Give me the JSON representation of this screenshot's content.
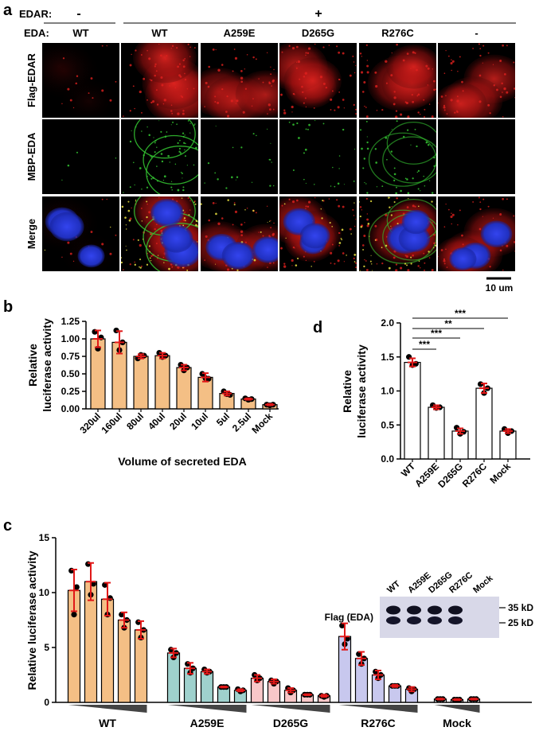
{
  "panel_a": {
    "letter": "a",
    "edar_label": "EDAR:",
    "eda_label": "EDA:",
    "edar_values": [
      "-",
      "+"
    ],
    "columns": [
      "WT",
      "WT",
      "A259E",
      "D265G",
      "R276C",
      "-"
    ],
    "rows": [
      "Flag-EDAR",
      "MBP-EDA",
      "Merge"
    ],
    "scale_bar": "10 um",
    "channel_colors": {
      "flag": "#e0201e",
      "mbp": "#35c832",
      "dapi": "#2233dd"
    }
  },
  "panel_b": {
    "letter": "b",
    "chart_data": {
      "type": "bar",
      "categories": [
        "320ul",
        "160ul",
        "80ul",
        "40ul",
        "20ul",
        "10ul",
        "5ul",
        "2.5ul",
        "Mock"
      ],
      "values": [
        1.0,
        0.95,
        0.75,
        0.76,
        0.59,
        0.45,
        0.22,
        0.14,
        0.06
      ],
      "errors": [
        0.12,
        0.16,
        0.03,
        0.04,
        0.04,
        0.06,
        0.03,
        0.01,
        0.01
      ],
      "points": [
        [
          1.1,
          0.86,
          1.02
        ],
        [
          1.12,
          0.84,
          0.95
        ],
        [
          0.72,
          0.77,
          0.76
        ],
        [
          0.8,
          0.74,
          0.76
        ],
        [
          0.63,
          0.55,
          0.59
        ],
        [
          0.5,
          0.44,
          0.43
        ],
        [
          0.25,
          0.21,
          0.2
        ],
        [
          0.15,
          0.13,
          0.14
        ],
        [
          0.06,
          0.05,
          0.06
        ]
      ],
      "ylabel": [
        "Relative",
        "luciferase activity"
      ],
      "xlabel": "Volume of secreted EDA",
      "ylim": [
        0,
        1.25
      ],
      "yticks": [
        "0.00",
        "0.25",
        "0.50",
        "0.75",
        "1.00",
        "1.25"
      ],
      "bar_color": "#f4bf85"
    }
  },
  "panel_c": {
    "letter": "c",
    "chart_data": {
      "type": "bar",
      "groups": [
        {
          "name": "WT",
          "color": "#f4bf85",
          "values": [
            10.2,
            11.0,
            9.4,
            7.5,
            6.6
          ],
          "errors": [
            1.9,
            1.7,
            1.5,
            0.7,
            0.8
          ],
          "points": [
            [
              12.0,
              8.0,
              10.5
            ],
            [
              12.6,
              9.8,
              10.8
            ],
            [
              10.7,
              8.0,
              9.5
            ],
            [
              8.0,
              6.8,
              7.5
            ],
            [
              7.3,
              5.9,
              6.6
            ]
          ]
        },
        {
          "name": "A259E",
          "color": "#9fd1cd",
          "values": [
            4.5,
            3.1,
            2.8,
            1.4,
            1.1
          ],
          "errors": [
            0.4,
            0.5,
            0.2,
            0.05,
            0.1
          ],
          "points": [
            [
              4.8,
              4.1,
              4.5
            ],
            [
              3.5,
              2.7,
              3.1
            ],
            [
              3.0,
              2.7,
              2.8
            ],
            [
              1.4,
              1.4,
              1.4
            ],
            [
              1.2,
              1.0,
              1.1
            ]
          ]
        },
        {
          "name": "D265G",
          "color": "#f8c7c8",
          "values": [
            2.2,
            1.9,
            1.1,
            0.7,
            0.6
          ],
          "errors": [
            0.3,
            0.2,
            0.2,
            0.05,
            0.1
          ],
          "points": [
            [
              2.5,
              2.0,
              2.2
            ],
            [
              2.0,
              1.7,
              1.9
            ],
            [
              1.3,
              0.9,
              1.1
            ],
            [
              0.7,
              0.7,
              0.7
            ],
            [
              0.6,
              0.5,
              0.6
            ]
          ]
        },
        {
          "name": "R276C",
          "color": "#c8c8ee",
          "values": [
            6.0,
            4.0,
            2.5,
            1.5,
            1.2
          ],
          "errors": [
            1.2,
            0.6,
            0.4,
            0.1,
            0.2
          ],
          "points": [
            [
              7.0,
              5.3,
              5.8
            ],
            [
              4.4,
              3.5,
              4.0
            ],
            [
              2.8,
              2.2,
              2.5
            ],
            [
              1.5,
              1.5,
              1.5
            ],
            [
              1.3,
              1.0,
              1.2
            ]
          ]
        },
        {
          "name": "Mock",
          "color": "#ffffff",
          "values": [
            0.3,
            0.25,
            0.3
          ],
          "errors": [
            0.05,
            0.05,
            0.05
          ],
          "points": [
            [
              0.3,
              0.3,
              0.3
            ],
            [
              0.25,
              0.25,
              0.25
            ],
            [
              0.3,
              0.3,
              0.3
            ]
          ]
        }
      ],
      "ylabel": "Relative luciferase activity",
      "ylim": [
        0,
        15
      ],
      "yticks": [
        "0",
        "5",
        "10",
        "15"
      ]
    },
    "blot": {
      "lanes": [
        "WT",
        "A259E",
        "D265G",
        "R276C",
        "Mock"
      ],
      "row_label": "Flag (EDA)",
      "markers": [
        "35 kD",
        "25 kD"
      ]
    }
  },
  "panel_d": {
    "letter": "d",
    "chart_data": {
      "type": "bar",
      "categories": [
        "WT",
        "A259E",
        "D265G",
        "R276C",
        "Mock"
      ],
      "values": [
        1.42,
        0.76,
        0.41,
        1.04,
        0.41
      ],
      "errors": [
        0.06,
        0.03,
        0.04,
        0.07,
        0.03
      ],
      "points": [
        [
          1.5,
          1.38,
          1.4
        ],
        [
          0.79,
          0.75,
          0.76
        ],
        [
          0.46,
          0.37,
          0.4
        ],
        [
          1.1,
          0.97,
          1.04
        ],
        [
          0.44,
          0.38,
          0.41
        ]
      ],
      "ylabel": [
        "Relative",
        "luciferase activity"
      ],
      "ylim": [
        0,
        2.0
      ],
      "yticks": [
        "0.0",
        "0.5",
        "1.0",
        "1.5",
        "2.0"
      ],
      "significance": [
        "***",
        "***",
        "**",
        "***"
      ],
      "bar_color": "#ffffff"
    }
  }
}
